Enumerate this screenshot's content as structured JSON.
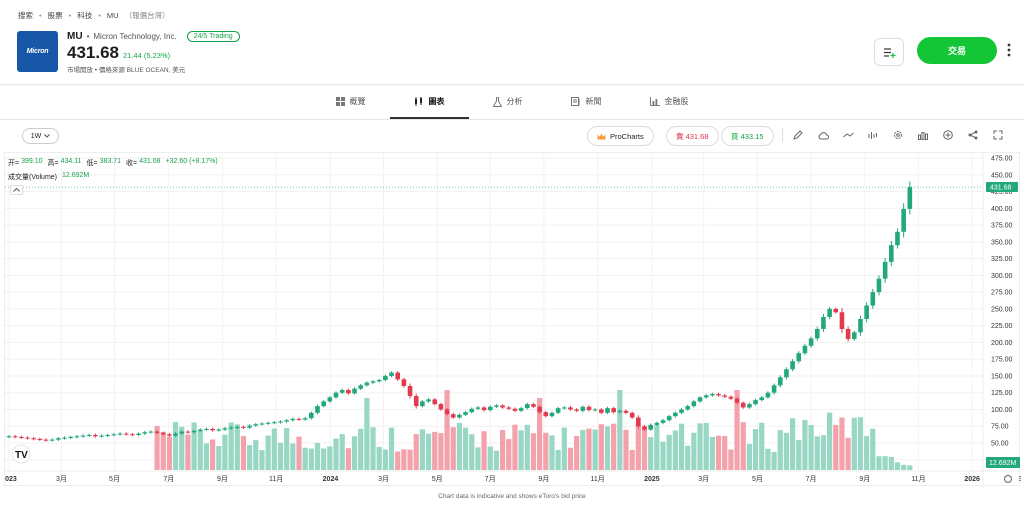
{
  "breadcrumb": [
    "搜索",
    "股票",
    "科技",
    "MU"
  ],
  "breadcrumb_note": "（報價台灣）",
  "logo_text": "Micron",
  "instrument": {
    "symbol": "MU",
    "name": "Micron Technology, Inc.",
    "badge": "24/5 Trading",
    "price": "431.68",
    "change": "21.44 (5.23%)",
    "status": "市場開放 • 價格來源 BLUE OCEAN, 美元"
  },
  "actions": {
    "trade": "交易"
  },
  "tabs": [
    {
      "label": "概覽",
      "icon": "grid-icon"
    },
    {
      "label": "圖表",
      "icon": "candles-icon"
    },
    {
      "label": "分析",
      "icon": "flask-icon"
    },
    {
      "label": "新聞",
      "icon": "newspaper-icon"
    },
    {
      "label": "金融股",
      "icon": "bar-chart-icon"
    }
  ],
  "toolbar": {
    "timeframe": "1W",
    "procharts": "ProCharts",
    "sell": "賣 431.68",
    "buy": "買 433.15"
  },
  "legend": {
    "open_label": "开=",
    "open": "399.10",
    "high_label": "高=",
    "high": "434.11",
    "low_label": "低=",
    "low": "383.71",
    "close_label": "收=",
    "close": "431.68",
    "change": "+32.60 (+8.17%)",
    "volume_label": "成交量(Volume)",
    "volume": "12.692M"
  },
  "footer_note": "Chart data is indicative and shows eToro's bid price",
  "colors": {
    "up": "#22a87b",
    "down": "#e23a4e",
    "vol_up": "#98d7c4",
    "vol_down": "#f3a1aa",
    "trade": "#13c636"
  },
  "chart_data": {
    "type": "candlestick",
    "interval": "1W",
    "y_axis_ticks": [
      475,
      450,
      425,
      400,
      375,
      350,
      325,
      300,
      275,
      250,
      225,
      200,
      175,
      150,
      125,
      100,
      75,
      50,
      25
    ],
    "y_axis_format": "2dp",
    "last_price_label": "431.68",
    "last_volume_label": "12.692M",
    "x_axis_labels": [
      "2023",
      "3月",
      "5月",
      "7月",
      "9月",
      "11月",
      "2024",
      "3月",
      "5月",
      "7月",
      "9月",
      "11月",
      "2025",
      "3月",
      "5月",
      "7月",
      "9月",
      "11月",
      "2026",
      "3月"
    ],
    "x_axis_label_index": [
      0,
      8.5,
      17.1,
      25.9,
      34.6,
      43.3,
      52.1,
      60.7,
      69.4,
      78.0,
      86.7,
      95.4,
      104.2,
      112.6,
      121.3,
      130.0,
      138.7,
      147.4,
      156.1,
      164.5
    ],
    "series": [
      {
        "name": "2023Q1",
        "closes": [
          60,
          59,
          58,
          57,
          56,
          55,
          54,
          55,
          57,
          58,
          59,
          60,
          61,
          62,
          60,
          61,
          62,
          63,
          64,
          63,
          62,
          64,
          66
        ]
      },
      {
        "name": "2023Q2-Q3",
        "closes": [
          67,
          65,
          63,
          61,
          64,
          67,
          66,
          68,
          70,
          71,
          69,
          70,
          72,
          73,
          74,
          73,
          76,
          78,
          79,
          80,
          81,
          82,
          84
        ]
      },
      {
        "name": "2024H1",
        "closes": [
          86,
          85,
          87,
          95,
          105,
          112,
          118,
          125,
          129,
          124,
          131,
          136,
          140,
          142,
          144,
          150,
          155,
          145,
          135,
          120,
          105,
          112,
          115
        ]
      },
      {
        "name": "2024H2",
        "closes": [
          108,
          100,
          93,
          88,
          92,
          96,
          101,
          103,
          99,
          104,
          106,
          103,
          101,
          98,
          102,
          108,
          104,
          96,
          90,
          95,
          102,
          103,
          100
        ]
      },
      {
        "name": "2025H1",
        "closes": [
          98,
          104,
          99,
          100,
          95,
          102,
          96,
          98,
          95,
          88,
          75,
          70,
          77,
          80,
          84,
          90,
          95,
          100,
          105,
          112,
          118,
          121,
          123
        ]
      },
      {
        "name": "2025H2",
        "closes": [
          121,
          119,
          116,
          110,
          103,
          108,
          114,
          118,
          125,
          136,
          148,
          160,
          172,
          184,
          195,
          206,
          220,
          238,
          250,
          245,
          220,
          205,
          215
        ]
      },
      {
        "name": "2026",
        "closes": [
          235,
          255,
          275,
          295,
          320,
          345,
          365,
          399.1,
          431.68
        ]
      }
    ],
    "volume_scale_note": "relative volume bars, up to ~15M"
  }
}
